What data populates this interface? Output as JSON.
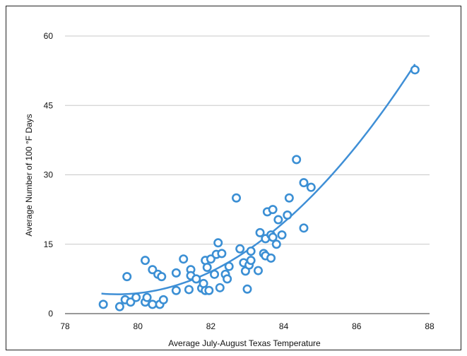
{
  "chart_data": {
    "type": "scatter",
    "title": "",
    "xlabel": "Average July-August Texas Temperature",
    "ylabel": "Average Number of 100 °F Days",
    "xlim": [
      78,
      88
    ],
    "ylim": [
      0,
      60
    ],
    "xticks": [
      78,
      80,
      82,
      84,
      86,
      88
    ],
    "yticks": [
      0,
      15,
      30,
      45,
      60
    ],
    "grid": "horizontal",
    "colors": {
      "marker": "#3b8fd4",
      "trend": "#3f8fd6",
      "grid": "#c8c8c8"
    },
    "points": [
      {
        "x": 79.05,
        "y": 2
      },
      {
        "x": 79.5,
        "y": 1.5
      },
      {
        "x": 79.65,
        "y": 3
      },
      {
        "x": 79.7,
        "y": 8
      },
      {
        "x": 79.8,
        "y": 2.5
      },
      {
        "x": 79.95,
        "y": 3.5
      },
      {
        "x": 80.2,
        "y": 11.5
      },
      {
        "x": 80.2,
        "y": 2.5
      },
      {
        "x": 80.25,
        "y": 3.5
      },
      {
        "x": 80.4,
        "y": 9.5
      },
      {
        "x": 80.4,
        "y": 2
      },
      {
        "x": 80.55,
        "y": 8.5
      },
      {
        "x": 80.6,
        "y": 2
      },
      {
        "x": 80.65,
        "y": 8
      },
      {
        "x": 80.7,
        "y": 3
      },
      {
        "x": 81.05,
        "y": 5
      },
      {
        "x": 81.05,
        "y": 8.8
      },
      {
        "x": 81.25,
        "y": 11.8
      },
      {
        "x": 81.4,
        "y": 5.2
      },
      {
        "x": 81.45,
        "y": 9.5
      },
      {
        "x": 81.45,
        "y": 8.2
      },
      {
        "x": 81.6,
        "y": 7.5
      },
      {
        "x": 81.75,
        "y": 5.5
      },
      {
        "x": 81.8,
        "y": 6.5
      },
      {
        "x": 81.85,
        "y": 11.5
      },
      {
        "x": 81.85,
        "y": 5
      },
      {
        "x": 81.9,
        "y": 10
      },
      {
        "x": 81.95,
        "y": 5
      },
      {
        "x": 82.0,
        "y": 11.8
      },
      {
        "x": 82.1,
        "y": 8.5
      },
      {
        "x": 82.15,
        "y": 12.8
      },
      {
        "x": 82.2,
        "y": 15.3
      },
      {
        "x": 82.25,
        "y": 5.6
      },
      {
        "x": 82.3,
        "y": 13
      },
      {
        "x": 82.4,
        "y": 8.5
      },
      {
        "x": 82.45,
        "y": 7.5
      },
      {
        "x": 82.5,
        "y": 10.2
      },
      {
        "x": 82.7,
        "y": 25
      },
      {
        "x": 82.8,
        "y": 14
      },
      {
        "x": 82.9,
        "y": 11
      },
      {
        "x": 82.95,
        "y": 9.2
      },
      {
        "x": 83.0,
        "y": 5.3
      },
      {
        "x": 83.05,
        "y": 10.5
      },
      {
        "x": 83.1,
        "y": 11.5
      },
      {
        "x": 83.1,
        "y": 13.5
      },
      {
        "x": 83.3,
        "y": 9.3
      },
      {
        "x": 83.35,
        "y": 17.5
      },
      {
        "x": 83.45,
        "y": 13
      },
      {
        "x": 83.5,
        "y": 12.5
      },
      {
        "x": 83.5,
        "y": 16.2
      },
      {
        "x": 83.55,
        "y": 22
      },
      {
        "x": 83.65,
        "y": 12
      },
      {
        "x": 83.65,
        "y": 17
      },
      {
        "x": 83.7,
        "y": 22.5
      },
      {
        "x": 83.7,
        "y": 16.5
      },
      {
        "x": 83.8,
        "y": 15
      },
      {
        "x": 83.85,
        "y": 20.3
      },
      {
        "x": 83.95,
        "y": 17
      },
      {
        "x": 84.1,
        "y": 21.3
      },
      {
        "x": 84.15,
        "y": 25
      },
      {
        "x": 84.35,
        "y": 33.3
      },
      {
        "x": 84.55,
        "y": 28.3
      },
      {
        "x": 84.55,
        "y": 18.5
      },
      {
        "x": 84.75,
        "y": 27.3
      },
      {
        "x": 87.6,
        "y": 52.7
      }
    ],
    "trendline": {
      "type": "polynomial",
      "x": [
        79,
        87.6
      ]
    }
  }
}
